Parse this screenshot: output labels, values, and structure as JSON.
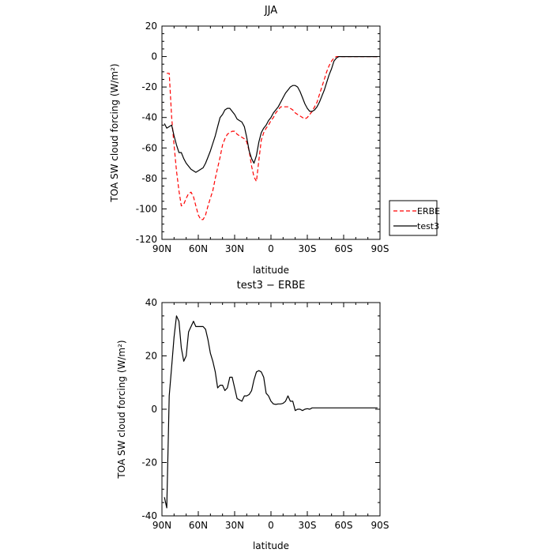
{
  "chart_data": [
    {
      "type": "line",
      "title": "JJA",
      "xlabel": "latitude",
      "ylabel": "TOA SW cloud forcing (W/m²)",
      "xlim": [
        90,
        -90
      ],
      "ylim": [
        -120,
        20
      ],
      "x_ticks": [
        90,
        60,
        30,
        0,
        -30,
        -60,
        -90
      ],
      "x_tick_labels": [
        "90N",
        "60N",
        "30N",
        "0",
        "30S",
        "60S",
        "90S"
      ],
      "y_ticks": [
        -120,
        -100,
        -80,
        -60,
        -40,
        -20,
        0,
        20
      ],
      "legend": {
        "placement": "right",
        "entries": [
          "ERBE",
          "test3"
        ]
      },
      "series": [
        {
          "name": "ERBE",
          "color": "#ff0000",
          "dash": "dashed",
          "x": [
            86,
            84,
            82,
            80,
            78,
            76,
            74,
            72,
            70,
            68,
            66,
            64,
            62,
            60,
            58,
            56,
            54,
            52,
            50,
            48,
            46,
            44,
            42,
            40,
            38,
            36,
            34,
            32,
            30,
            28,
            26,
            24,
            22,
            20,
            18,
            16,
            14,
            12,
            10,
            8,
            6,
            4,
            2,
            0,
            -2,
            -4,
            -6,
            -8,
            -10,
            -12,
            -14,
            -16,
            -18,
            -20,
            -22,
            -24,
            -26,
            -28,
            -30,
            -32,
            -34,
            -36,
            -38,
            -40,
            -42,
            -44,
            -46,
            -48,
            -50,
            -52,
            -54,
            -56,
            -58,
            -60,
            -62,
            -64,
            -66,
            -68,
            -70,
            -72,
            -74,
            -76,
            -78,
            -80,
            -82,
            -84,
            -86,
            -88
          ],
          "y": [
            -11,
            -11,
            -40,
            -58,
            -75,
            -88,
            -98,
            -97,
            -93,
            -90,
            -89,
            -92,
            -98,
            -104,
            -107,
            -107,
            -104,
            -98,
            -93,
            -88,
            -80,
            -73,
            -66,
            -58,
            -54,
            -51,
            -50,
            -49,
            -49,
            -51,
            -52,
            -53,
            -54,
            -56,
            -62,
            -72,
            -79,
            -82,
            -68,
            -55,
            -50,
            -47,
            -45,
            -42,
            -40,
            -37,
            -35,
            -33,
            -33,
            -33,
            -33,
            -34,
            -35,
            -37,
            -38,
            -39,
            -40,
            -41,
            -40,
            -38,
            -36,
            -33,
            -30,
            -25,
            -20,
            -15,
            -10,
            -6,
            -3,
            -1,
            0,
            0,
            0,
            0,
            0,
            0,
            0,
            0,
            0,
            0,
            0,
            0,
            0,
            0,
            0,
            0,
            0,
            0
          ]
        },
        {
          "name": "test3",
          "color": "#000000",
          "dash": "solid",
          "x": [
            88,
            86,
            84,
            82,
            80,
            78,
            76,
            74,
            72,
            70,
            68,
            66,
            64,
            62,
            60,
            58,
            56,
            54,
            52,
            50,
            48,
            46,
            44,
            42,
            40,
            38,
            36,
            34,
            32,
            30,
            28,
            26,
            24,
            22,
            20,
            18,
            16,
            14,
            12,
            10,
            8,
            6,
            4,
            2,
            0,
            -2,
            -4,
            -6,
            -8,
            -10,
            -12,
            -14,
            -16,
            -18,
            -20,
            -22,
            -24,
            -26,
            -28,
            -30,
            -32,
            -34,
            -36,
            -38,
            -40,
            -42,
            -44,
            -46,
            -48,
            -50,
            -52,
            -54,
            -56,
            -58,
            -60,
            -62,
            -64,
            -66,
            -68,
            -70,
            -72,
            -74,
            -76,
            -78,
            -80,
            -82,
            -84,
            -86,
            -88
          ],
          "y": [
            -44,
            -47,
            -46,
            -45,
            -52,
            -58,
            -63,
            -63,
            -67,
            -70,
            -72,
            -74,
            -75,
            -76,
            -75,
            -74,
            -73,
            -70,
            -66,
            -62,
            -57,
            -52,
            -46,
            -40,
            -38,
            -35,
            -34,
            -34,
            -36,
            -38,
            -41,
            -42,
            -43,
            -46,
            -53,
            -62,
            -67,
            -70,
            -65,
            -56,
            -50,
            -47,
            -45,
            -42,
            -40,
            -37,
            -35,
            -33,
            -30,
            -27,
            -24,
            -22,
            -20,
            -19,
            -19,
            -20,
            -23,
            -27,
            -31,
            -34,
            -36,
            -36,
            -35,
            -33,
            -30,
            -26,
            -22,
            -17,
            -12,
            -8,
            -3,
            -1,
            0,
            0,
            0,
            0,
            0,
            0,
            0,
            0,
            0,
            0,
            0,
            0,
            0,
            0,
            0,
            0,
            0
          ]
        }
      ]
    },
    {
      "type": "line",
      "title": "test3 − ERBE",
      "xlabel": "latitude",
      "ylabel": "TOA SW cloud forcing (W/m²)",
      "xlim": [
        90,
        -90
      ],
      "ylim": [
        -40,
        40
      ],
      "x_ticks": [
        90,
        60,
        30,
        0,
        -30,
        -60,
        -90
      ],
      "x_tick_labels": [
        "90N",
        "60N",
        "30N",
        "0",
        "30S",
        "60S",
        "90S"
      ],
      "y_ticks": [
        -40,
        -20,
        0,
        20,
        40
      ],
      "series": [
        {
          "color": "#000000",
          "dash": "solid",
          "x": [
            88,
            86,
            84,
            82,
            80,
            78,
            76,
            74,
            72,
            70,
            68,
            66,
            64,
            62,
            60,
            58,
            56,
            54,
            52,
            50,
            48,
            46,
            44,
            42,
            40,
            38,
            36,
            34,
            32,
            30,
            28,
            26,
            24,
            22,
            20,
            18,
            16,
            14,
            12,
            10,
            8,
            6,
            4,
            2,
            0,
            -2,
            -4,
            -6,
            -8,
            -10,
            -12,
            -14,
            -16,
            -18,
            -20,
            -22,
            -24,
            -26,
            -28,
            -30,
            -32,
            -34,
            -36,
            -38,
            -40,
            -42,
            -44,
            -46,
            -48,
            -50,
            -52,
            -54,
            -56,
            -58,
            -60,
            -62,
            -64,
            -66,
            -68,
            -70,
            -72,
            -74,
            -76,
            -78,
            -80,
            -82,
            -84,
            -86,
            -88
          ],
          "y": [
            -33,
            -37,
            5,
            16,
            27,
            35,
            33,
            23,
            18,
            20,
            29,
            31,
            33,
            31,
            31,
            31,
            31,
            30,
            26,
            21,
            18,
            14,
            8,
            9,
            9,
            7,
            8,
            12,
            12,
            8,
            4,
            3.5,
            3,
            5,
            5,
            5.5,
            7,
            11,
            14,
            14.5,
            14,
            12,
            6,
            5,
            3,
            2,
            1.8,
            2,
            2,
            2.2,
            3,
            5,
            3,
            3,
            -0.5,
            0,
            0,
            -0.5,
            0,
            0.2,
            0,
            0.5,
            0.5,
            0.5,
            0.5,
            0.5,
            0.5,
            0.5,
            0.5,
            0.5,
            0.5,
            0.5,
            0.5,
            0.5,
            0.5,
            0.5,
            0.5,
            0.5,
            0.5,
            0.5,
            0.5,
            0.5,
            0.5,
            0.5,
            0.5,
            0.5,
            0.5,
            0.5,
            0.5
          ]
        }
      ]
    }
  ]
}
